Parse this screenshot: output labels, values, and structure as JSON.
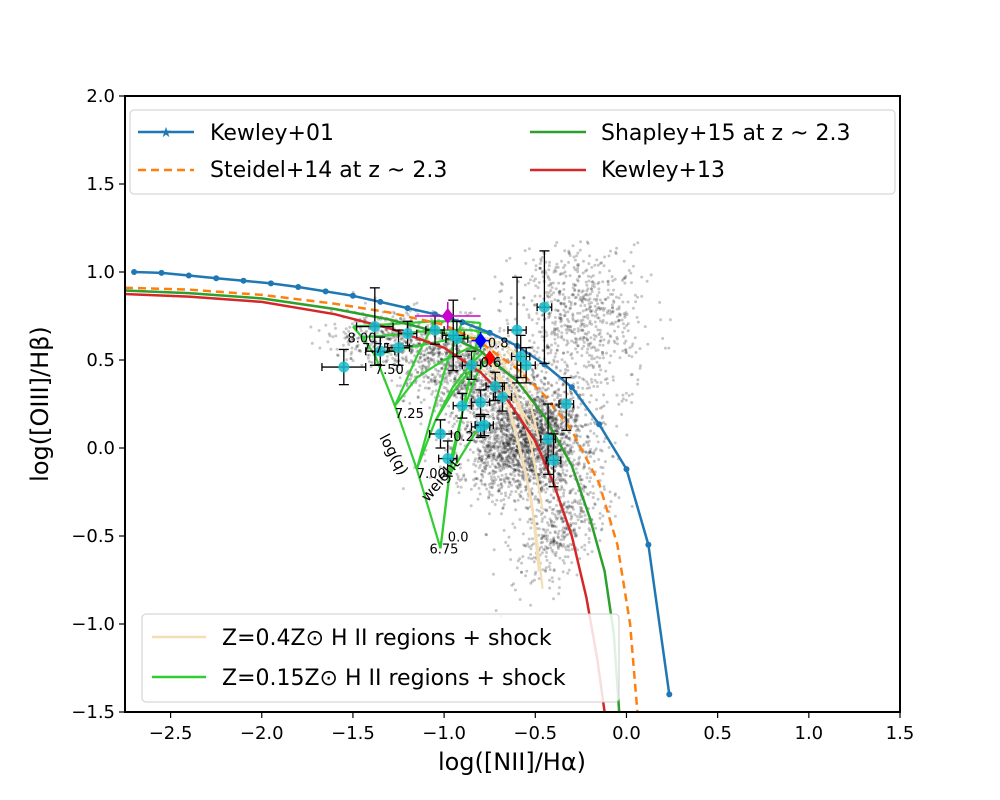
{
  "chart_data": {
    "type": "scatter",
    "xlabel": "log([NII]/Hα)",
    "ylabel": "log([OIII]/Hβ)",
    "xlim": [
      -2.75,
      1.5
    ],
    "ylim": [
      -1.5,
      2.0
    ],
    "xticks": [
      -2.5,
      -2.0,
      -1.5,
      -1.0,
      -0.5,
      0.0,
      0.5,
      1.0,
      1.5
    ],
    "xtick_labels": [
      "−2.5",
      "−2.0",
      "−1.5",
      "−1.0",
      "−0.5",
      "0.0",
      "0.5",
      "1.0",
      "1.5"
    ],
    "yticks": [
      -1.5,
      -1.0,
      -0.5,
      0.0,
      0.5,
      1.0,
      1.5,
      2.0
    ],
    "ytick_labels": [
      "−1.5",
      "−1.0",
      "−0.5",
      "0.0",
      "0.5",
      "1.0",
      "1.5",
      "2.0"
    ],
    "legend_upper": [
      {
        "label": "Kewley+01",
        "color": "#1f77b4",
        "style": "solid-star"
      },
      {
        "label": "Steidel+14 at z ~  2.3",
        "color": "#ff7f0e",
        "style": "dashed"
      },
      {
        "label": "Shapley+15 at z ~  2.3",
        "color": "#2ca02c",
        "style": "solid"
      },
      {
        "label": "Kewley+13",
        "color": "#d62728",
        "style": "solid"
      }
    ],
    "legend_lower": [
      {
        "label": "Z=0.4Z⊙ H II regions + shock",
        "color": "#f5deb3"
      },
      {
        "label": "Z=0.15Z⊙ H II regions + shock",
        "color": "#32cd32"
      }
    ],
    "series": [
      {
        "name": "Kewley+01",
        "color": "#1f77b4",
        "x": [
          -2.7,
          -2.55,
          -2.4,
          -2.25,
          -2.1,
          -1.95,
          -1.8,
          -1.65,
          -1.5,
          -1.35,
          -1.2,
          -1.05,
          -0.9,
          -0.75,
          -0.6,
          -0.45,
          -0.3,
          -0.15,
          0.0,
          0.12,
          0.235
        ],
        "y": [
          1.0,
          0.995,
          0.98,
          0.965,
          0.95,
          0.935,
          0.915,
          0.89,
          0.865,
          0.83,
          0.795,
          0.76,
          0.715,
          0.655,
          0.58,
          0.475,
          0.345,
          0.135,
          -0.12,
          -0.55,
          -1.4
        ]
      },
      {
        "name": "Steidel+14 at z ~ 2.3",
        "color": "#ff7f0e",
        "x": [
          -2.75,
          -2.4,
          -2.0,
          -1.6,
          -1.3,
          -1.0,
          -0.8,
          -0.6,
          -0.45,
          -0.3,
          -0.15,
          -0.05,
          0.02,
          0.06
        ],
        "y": [
          0.91,
          0.9,
          0.87,
          0.82,
          0.77,
          0.7,
          0.6,
          0.45,
          0.3,
          0.1,
          -0.2,
          -0.55,
          -1.0,
          -1.5
        ]
      },
      {
        "name": "Shapley+15 at z ~ 2.3",
        "color": "#2ca02c",
        "x": [
          -2.75,
          -2.4,
          -2.0,
          -1.6,
          -1.3,
          -1.0,
          -0.8,
          -0.6,
          -0.45,
          -0.3,
          -0.2,
          -0.12,
          -0.07,
          -0.04
        ],
        "y": [
          0.895,
          0.88,
          0.85,
          0.79,
          0.73,
          0.65,
          0.55,
          0.38,
          0.18,
          -0.1,
          -0.4,
          -0.7,
          -1.05,
          -1.5
        ]
      },
      {
        "name": "Kewley+13",
        "color": "#d62728",
        "x": [
          -2.75,
          -2.4,
          -2.0,
          -1.6,
          -1.3,
          -1.0,
          -0.8,
          -0.65,
          -0.5,
          -0.4,
          -0.3,
          -0.22,
          -0.16,
          -0.12
        ],
        "y": [
          0.875,
          0.86,
          0.83,
          0.76,
          0.68,
          0.57,
          0.43,
          0.27,
          0.04,
          -0.2,
          -0.5,
          -0.85,
          -1.2,
          -1.5
        ]
      }
    ],
    "grid_labels": [
      {
        "text": "8.00",
        "x": -1.53,
        "y": 0.6
      },
      {
        "text": "7.75",
        "x": -1.45,
        "y": 0.54
      },
      {
        "text": "7.50",
        "x": -1.38,
        "y": 0.42
      },
      {
        "text": "7.25",
        "x": -1.27,
        "y": 0.17
      },
      {
        "text": "7.00",
        "x": -1.15,
        "y": -0.17
      },
      {
        "text": "6.75",
        "x": -1.08,
        "y": -0.6
      },
      {
        "text": "0.8",
        "x": -0.76,
        "y": 0.57
      },
      {
        "text": "0.6",
        "x": -0.8,
        "y": 0.46
      },
      {
        "text": "0.2",
        "x": -0.95,
        "y": 0.04
      },
      {
        "text": "0.0",
        "x": -0.98,
        "y": -0.53
      }
    ],
    "grid_titles": [
      {
        "text": "log(q)",
        "x": -1.3,
        "y": -0.05,
        "angle": 62
      },
      {
        "text": "weight",
        "x": -1.0,
        "y": -0.2,
        "angle": -50
      }
    ],
    "data_points": {
      "color": "#17becf",
      "x": [
        -1.55,
        -1.2,
        -1.05,
        -0.93,
        -0.85,
        -0.68,
        -0.6,
        -0.55,
        -0.45,
        -0.58,
        -0.8,
        -0.8,
        -0.72,
        -0.9,
        -0.78,
        -0.33,
        -0.43,
        -0.4,
        -1.02,
        -0.98,
        -1.35,
        -0.95,
        -1.38,
        -1.25
      ],
      "y": [
        0.46,
        0.65,
        0.67,
        0.62,
        0.47,
        0.29,
        0.67,
        0.47,
        0.8,
        0.52,
        0.26,
        0.12,
        0.35,
        0.24,
        0.13,
        0.25,
        0.05,
        -0.07,
        0.08,
        -0.06,
        0.55,
        0.64,
        0.69,
        0.57
      ],
      "xerr": [
        0.12,
        0.05,
        0.05,
        0.06,
        0.05,
        0.05,
        0.05,
        0.05,
        0.04,
        0.05,
        0.05,
        0.05,
        0.05,
        0.05,
        0.05,
        0.04,
        0.04,
        0.04,
        0.06,
        0.05,
        0.08,
        0.06,
        0.1,
        0.06
      ],
      "yerr": [
        0.1,
        0.07,
        0.08,
        0.1,
        0.08,
        0.08,
        0.3,
        0.1,
        0.32,
        0.12,
        0.07,
        0.06,
        0.08,
        0.07,
        0.06,
        0.15,
        0.2,
        0.15,
        0.08,
        0.1,
        0.08,
        0.2,
        0.22,
        0.1
      ]
    },
    "stacked_points": [
      {
        "name": "magenta",
        "color": "#cc00cc",
        "x": -0.98,
        "y": 0.75,
        "xerr": 0.18,
        "yerr": 0.08
      },
      {
        "name": "blue",
        "color": "#0000ff",
        "x": -0.8,
        "y": 0.61,
        "xerr": 0.05,
        "yerr": 0.05
      },
      {
        "name": "red",
        "color": "#ff0000",
        "x": -0.75,
        "y": 0.51,
        "xerr": 0.03,
        "yerr": 0.03
      }
    ]
  }
}
